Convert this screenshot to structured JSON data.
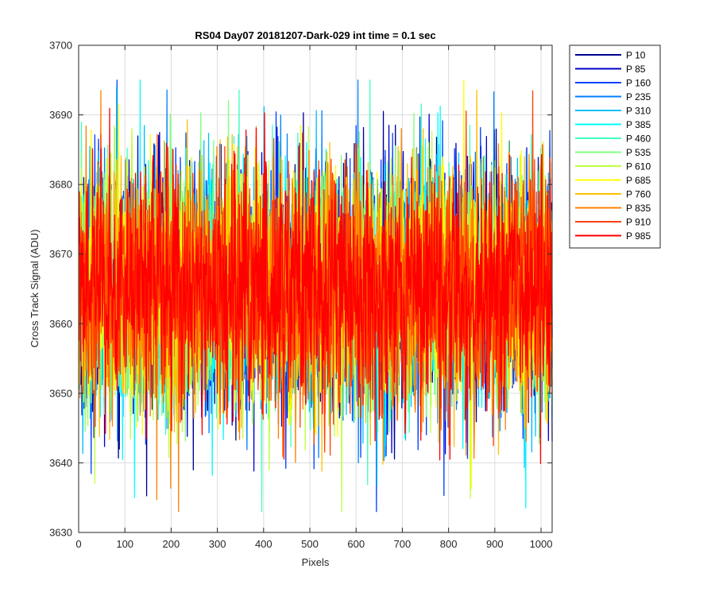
{
  "chart_data": {
    "type": "line",
    "title": "RS04 Day07 20181207-Dark-029 int time = 0.1 sec",
    "xlabel": "Pixels",
    "ylabel": "Cross Track Signal (ADU)",
    "xlim": [
      0,
      1024
    ],
    "ylim": [
      3630,
      3700
    ],
    "xticks": [
      "0",
      "100",
      "200",
      "300",
      "400",
      "500",
      "600",
      "700",
      "800",
      "900",
      "1000"
    ],
    "yticks": [
      "3630",
      "3640",
      "3650",
      "3660",
      "3670",
      "3680",
      "3690",
      "3700"
    ],
    "grid": true,
    "legend_position": "outside-right",
    "noise": {
      "mean": 3665,
      "min": 3633,
      "max": 3695,
      "points_per_series": 1024
    },
    "series": [
      {
        "name": "P 10",
        "color": "#00008f"
      },
      {
        "name": "P 85",
        "color": "#0000cc"
      },
      {
        "name": "P 160",
        "color": "#0040ff"
      },
      {
        "name": "P 235",
        "color": "#0080ff"
      },
      {
        "name": "P 310",
        "color": "#00bfff"
      },
      {
        "name": "P 385",
        "color": "#00ffff"
      },
      {
        "name": "P 460",
        "color": "#40ffbf"
      },
      {
        "name": "P 535",
        "color": "#80ff80"
      },
      {
        "name": "P 610",
        "color": "#bfff40"
      },
      {
        "name": "P 685",
        "color": "#ffff00"
      },
      {
        "name": "P 760",
        "color": "#ffbf00"
      },
      {
        "name": "P 835",
        "color": "#ff8000"
      },
      {
        "name": "P 910",
        "color": "#ff4000"
      },
      {
        "name": "P 985",
        "color": "#ff0000"
      }
    ]
  }
}
